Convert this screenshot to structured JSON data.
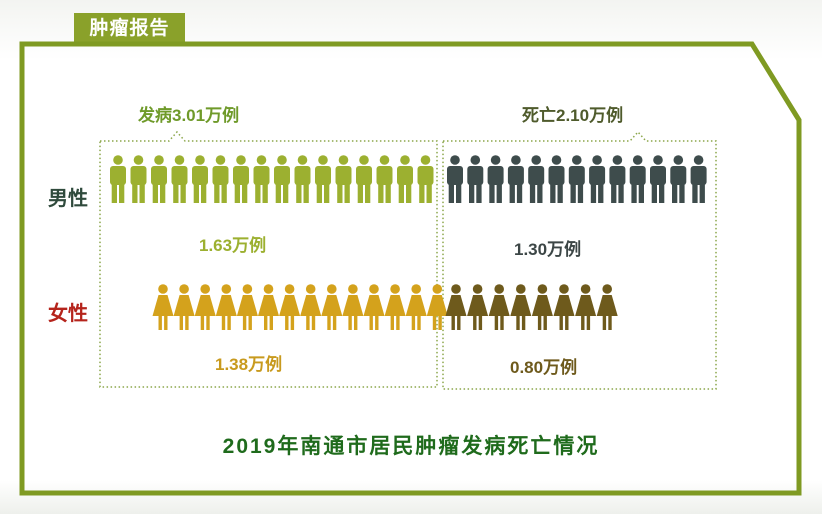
{
  "header": {
    "tab_label": "肿瘤报告"
  },
  "chart_data": {
    "type": "pictogram",
    "title": "2019年南通市居民肿瘤发病死亡情况",
    "groups": [
      {
        "label": "发病3.01万例"
      },
      {
        "label": "死亡2.10万例"
      }
    ],
    "categories": [
      "男性",
      "女性"
    ],
    "series": [
      {
        "values": [
          1.63,
          1.3
        ],
        "labels": [
          "1.63万例",
          "1.30万例"
        ]
      },
      {
        "values": [
          1.38,
          0.8
        ],
        "labels": [
          "1.38万例",
          "0.80万例"
        ]
      }
    ],
    "unit": "万例",
    "colors": {
      "male_incidence": "#9cb030",
      "male_death": "#3e4c4c",
      "female_incidence": "#d4a21c",
      "female_death": "#6e5a1c",
      "frame": "#7f9a22",
      "caption": "#1f6b1c",
      "male_label": "#2f4a3c",
      "female_label": "#b5241c"
    }
  }
}
